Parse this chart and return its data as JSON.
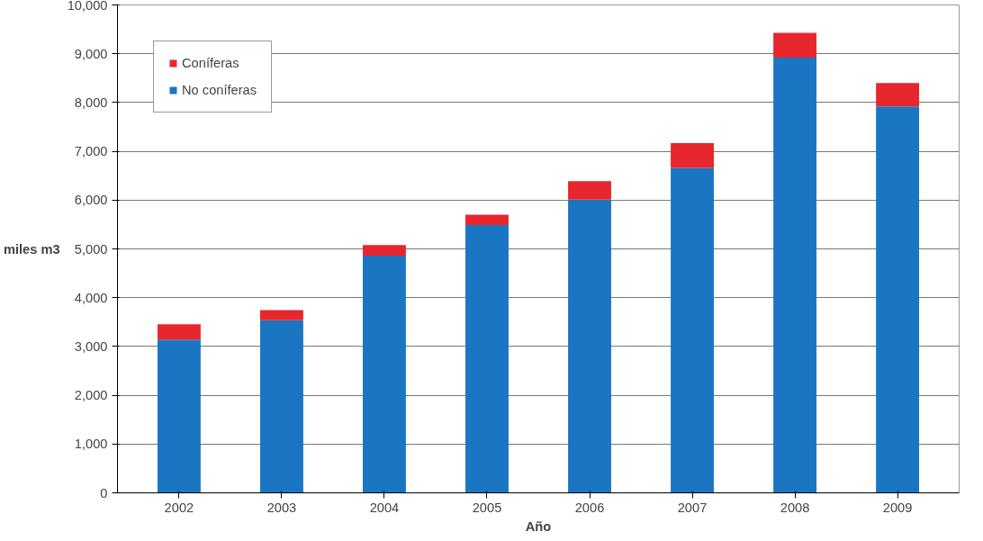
{
  "chart_data": {
    "type": "bar",
    "stacked": true,
    "xlabel": "Año",
    "ylabel": "miles m3",
    "categories": [
      "2002",
      "2003",
      "2004",
      "2005",
      "2006",
      "2007",
      "2008",
      "2009"
    ],
    "series": [
      {
        "name": "No coníferas",
        "color": "#1a76c2",
        "values": [
          3140,
          3540,
          4860,
          5490,
          6010,
          6660,
          8920,
          7920
        ]
      },
      {
        "name": "Coníferas",
        "color": "#e8262e",
        "values": [
          315,
          205,
          220,
          210,
          380,
          510,
          510,
          480
        ]
      }
    ],
    "ylim": [
      0,
      10000
    ],
    "yticks": [
      {
        "value": 0,
        "label": "0"
      },
      {
        "value": 1000,
        "label": "1,000"
      },
      {
        "value": 2000,
        "label": "2,000"
      },
      {
        "value": 3000,
        "label": "3,000"
      },
      {
        "value": 4000,
        "label": "4,000"
      },
      {
        "value": 5000,
        "label": "5,000"
      },
      {
        "value": 6000,
        "label": "6,000"
      },
      {
        "value": 7000,
        "label": "7,000"
      },
      {
        "value": 8000,
        "label": "8,000"
      },
      {
        "value": 9000,
        "label": "9,000"
      },
      {
        "value": 10000,
        "label": "10,000"
      }
    ],
    "grid": "y",
    "legend": "top left"
  }
}
